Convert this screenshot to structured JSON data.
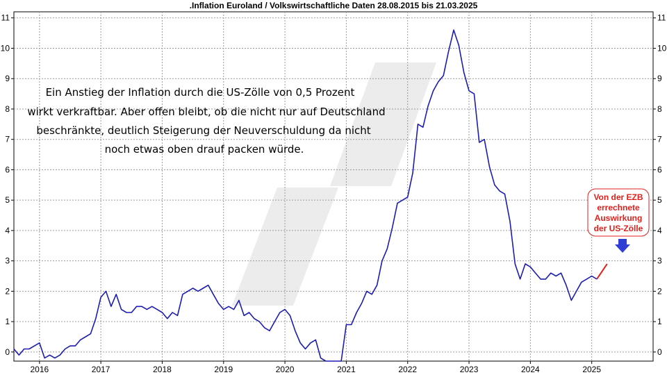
{
  "chart_data": {
    "type": "line",
    "title": ".Inflation Euroland / Volkswirtschaftliche Daten 28.08.2015 bis 21.03.2025",
    "xlabel": "",
    "ylabel": "",
    "ylim": [
      -0.3,
      11.2
    ],
    "xlim": [
      2015.583,
      2026.0
    ],
    "y_ticks": [
      "0",
      "1",
      "2",
      "3",
      "4",
      "5",
      "6",
      "7",
      "8",
      "9",
      "10",
      "11"
    ],
    "x_ticks": [
      {
        "label": "2016",
        "x": 2016
      },
      {
        "label": "2017",
        "x": 2017
      },
      {
        "label": "2018",
        "x": 2018
      },
      {
        "label": "2019",
        "x": 2019
      },
      {
        "label": "2020",
        "x": 2020
      },
      {
        "label": "2021",
        "x": 2021
      },
      {
        "label": "2022",
        "x": 2022
      },
      {
        "label": "2023",
        "x": 2023
      },
      {
        "label": "2024",
        "x": 2024
      },
      {
        "label": "2025",
        "x": 2025
      }
    ],
    "series": [
      {
        "name": "Inflation Euroland",
        "color": "#1c1cb0",
        "x": [
          2015.583,
          2015.667,
          2015.75,
          2015.833,
          2015.917,
          2016.0,
          2016.083,
          2016.167,
          2016.25,
          2016.333,
          2016.417,
          2016.5,
          2016.583,
          2016.667,
          2016.75,
          2016.833,
          2016.917,
          2017.0,
          2017.083,
          2017.167,
          2017.25,
          2017.333,
          2017.417,
          2017.5,
          2017.583,
          2017.667,
          2017.75,
          2017.833,
          2017.917,
          2018.0,
          2018.083,
          2018.167,
          2018.25,
          2018.333,
          2018.417,
          2018.5,
          2018.583,
          2018.667,
          2018.75,
          2018.833,
          2018.917,
          2019.0,
          2019.083,
          2019.167,
          2019.25,
          2019.333,
          2019.417,
          2019.5,
          2019.583,
          2019.667,
          2019.75,
          2019.833,
          2019.917,
          2020.0,
          2020.083,
          2020.167,
          2020.25,
          2020.333,
          2020.417,
          2020.5,
          2020.583,
          2020.667,
          2020.75,
          2020.833,
          2020.917,
          2021.0,
          2021.083,
          2021.167,
          2021.25,
          2021.333,
          2021.417,
          2021.5,
          2021.583,
          2021.667,
          2021.75,
          2021.833,
          2021.917,
          2022.0,
          2022.083,
          2022.167,
          2022.25,
          2022.333,
          2022.417,
          2022.5,
          2022.583,
          2022.667,
          2022.75,
          2022.833,
          2022.917,
          2023.0,
          2023.083,
          2023.167,
          2023.25,
          2023.333,
          2023.417,
          2023.5,
          2023.583,
          2023.667,
          2023.75,
          2023.833,
          2023.917,
          2024.0,
          2024.083,
          2024.167,
          2024.25,
          2024.333,
          2024.417,
          2024.5,
          2024.583,
          2024.667,
          2024.75,
          2024.833,
          2024.917,
          2025.0,
          2025.083
        ],
        "values": [
          0.1,
          -0.1,
          0.1,
          0.1,
          0.2,
          0.3,
          -0.2,
          -0.1,
          -0.2,
          -0.1,
          0.1,
          0.2,
          0.2,
          0.4,
          0.5,
          0.6,
          1.1,
          1.8,
          2.0,
          1.5,
          1.9,
          1.4,
          1.3,
          1.3,
          1.5,
          1.5,
          1.4,
          1.5,
          1.4,
          1.3,
          1.1,
          1.3,
          1.2,
          1.9,
          2.0,
          2.1,
          2.0,
          2.1,
          2.2,
          1.9,
          1.6,
          1.4,
          1.5,
          1.4,
          1.7,
          1.2,
          1.3,
          1.1,
          1.0,
          0.8,
          0.7,
          1.0,
          1.3,
          1.4,
          1.2,
          0.7,
          0.3,
          0.1,
          0.3,
          0.4,
          -0.2,
          -0.3,
          -0.3,
          -0.3,
          -0.3,
          0.9,
          0.9,
          1.3,
          1.6,
          2.0,
          1.9,
          2.2,
          3.0,
          3.4,
          4.1,
          4.9,
          5.0,
          5.1,
          5.9,
          7.5,
          7.4,
          8.1,
          8.6,
          8.9,
          9.1,
          9.9,
          10.6,
          10.1,
          9.2,
          8.6,
          8.5,
          6.9,
          7.0,
          6.1,
          5.5,
          5.3,
          5.2,
          4.3,
          2.9,
          2.4,
          2.9,
          2.8,
          2.6,
          2.4,
          2.4,
          2.6,
          2.5,
          2.6,
          2.2,
          1.7,
          2.0,
          2.3,
          2.4,
          2.5,
          2.4
        ]
      },
      {
        "name": "Von der EZB errechnete Auswirkung der US-Zölle",
        "color": "#e0201c",
        "x": [
          2025.083,
          2025.25
        ],
        "values": [
          2.4,
          2.9
        ]
      }
    ],
    "annotation": {
      "lines": [
        "Ein Anstieg der Inflation durch die US-Zölle von 0,5 Prozent",
        "wirkt verkraftbar. Aber offen bleibt, ob die nicht nur auf Deutschland",
        "beschränkte, deutlich Steigerung der Neuverschuldung da nicht",
        "noch etwas oben drauf packen würde."
      ]
    },
    "callout": {
      "lines": [
        "Von der EZB",
        "errechnete",
        "Auswirkung",
        "der US-Zölle"
      ],
      "border_color": "#e0201c",
      "arrow_color": "#2f3fd6"
    },
    "watermark_color": "#ececec",
    "grid": true
  }
}
